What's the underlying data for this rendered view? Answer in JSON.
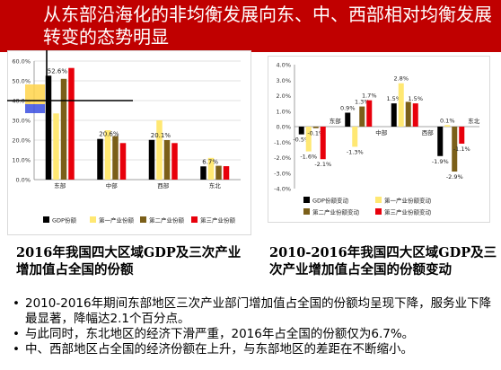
{
  "title": "从东部沿海化的非均衡发展向东、中、西部相对均衡发展转变的态势明显",
  "colors": {
    "title_bg": "#c00000",
    "gdp": "#000000",
    "primary": "#ffe873",
    "secondary": "#7b5f19",
    "tertiary": "#e8000b"
  },
  "chart_data": [
    {
      "type": "bar",
      "categories": [
        "东部",
        "中部",
        "西部",
        "东北"
      ],
      "series": [
        {
          "name": "GDP份额",
          "values": [
            52.6,
            20.6,
            20.1,
            6.7
          ]
        },
        {
          "name": "第一产业份额",
          "values": [
            33.5,
            25.0,
            30.0,
            11.0
          ]
        },
        {
          "name": "第二产业份额",
          "values": [
            51.0,
            22.0,
            20.0,
            7.0
          ]
        },
        {
          "name": "第三产业份额",
          "values": [
            56.5,
            18.5,
            18.5,
            6.8
          ]
        }
      ],
      "data_labels": [
        "52.6%",
        "20.6%",
        "20.1%",
        "6.7%"
      ],
      "ylim": [
        0,
        60
      ],
      "yticks": [
        "0.0%",
        "10.0%",
        "20.0%",
        "30.0%",
        "40.0%",
        "50.0%",
        "60.0%"
      ],
      "legend": "bottom",
      "grid": true
    },
    {
      "type": "bar",
      "categories": [
        "东部",
        "中部",
        "西部",
        "东北"
      ],
      "series": [
        {
          "name": "GDP份额变动",
          "values": [
            -0.5,
            0.9,
            1.5,
            -1.9
          ]
        },
        {
          "name": "第一产业份额变动",
          "values": [
            -1.6,
            -1.3,
            2.8,
            0.1
          ]
        },
        {
          "name": "第二产业份额变动",
          "values": [
            -0.1,
            1.3,
            1.6,
            -2.9
          ]
        },
        {
          "name": "第三产业份额变动",
          "values": [
            -2.1,
            1.7,
            1.5,
            -1.1
          ]
        }
      ],
      "data_labels": [
        [
          "-0.5%",
          "-1.6%",
          "-0.1%",
          "-2.1%"
        ],
        [
          "0.9%",
          "-1.3%",
          "1.3%",
          "1.7%"
        ],
        [
          "1.5%",
          "2.8%",
          "",
          "1.5%"
        ],
        [
          "-1.9%",
          "0.1%",
          "-2.9%",
          "-1.1%"
        ]
      ],
      "ylim": [
        -4,
        4
      ],
      "yticks": [
        "-4.0%",
        "-3.0%",
        "-2.0%",
        "-1.0%",
        "0.0%",
        "1.0%",
        "2.0%",
        "3.0%",
        "4.0%"
      ],
      "legend": "bottom",
      "grid": false
    }
  ],
  "captions": {
    "left": "2016年我国四大区域GDP及三次产业增加值占全国的份额",
    "right": "2010-2016年我国四大区域GDP及三次产业增加值占全国的份额变动"
  },
  "bullets": [
    "2010-2016年期间东部地区三次产业部门增加值占全国的份额均呈现下降，服务业下降最显著，降幅达2.1个百分点。",
    "与此同时，东北地区的经济下滑严重，2016年占全国的份额仅为6.7%。",
    "中、西部地区占全国的经济份额在上升，与东部地区的差距在不断缩小。"
  ],
  "bullet_symbol": "•"
}
